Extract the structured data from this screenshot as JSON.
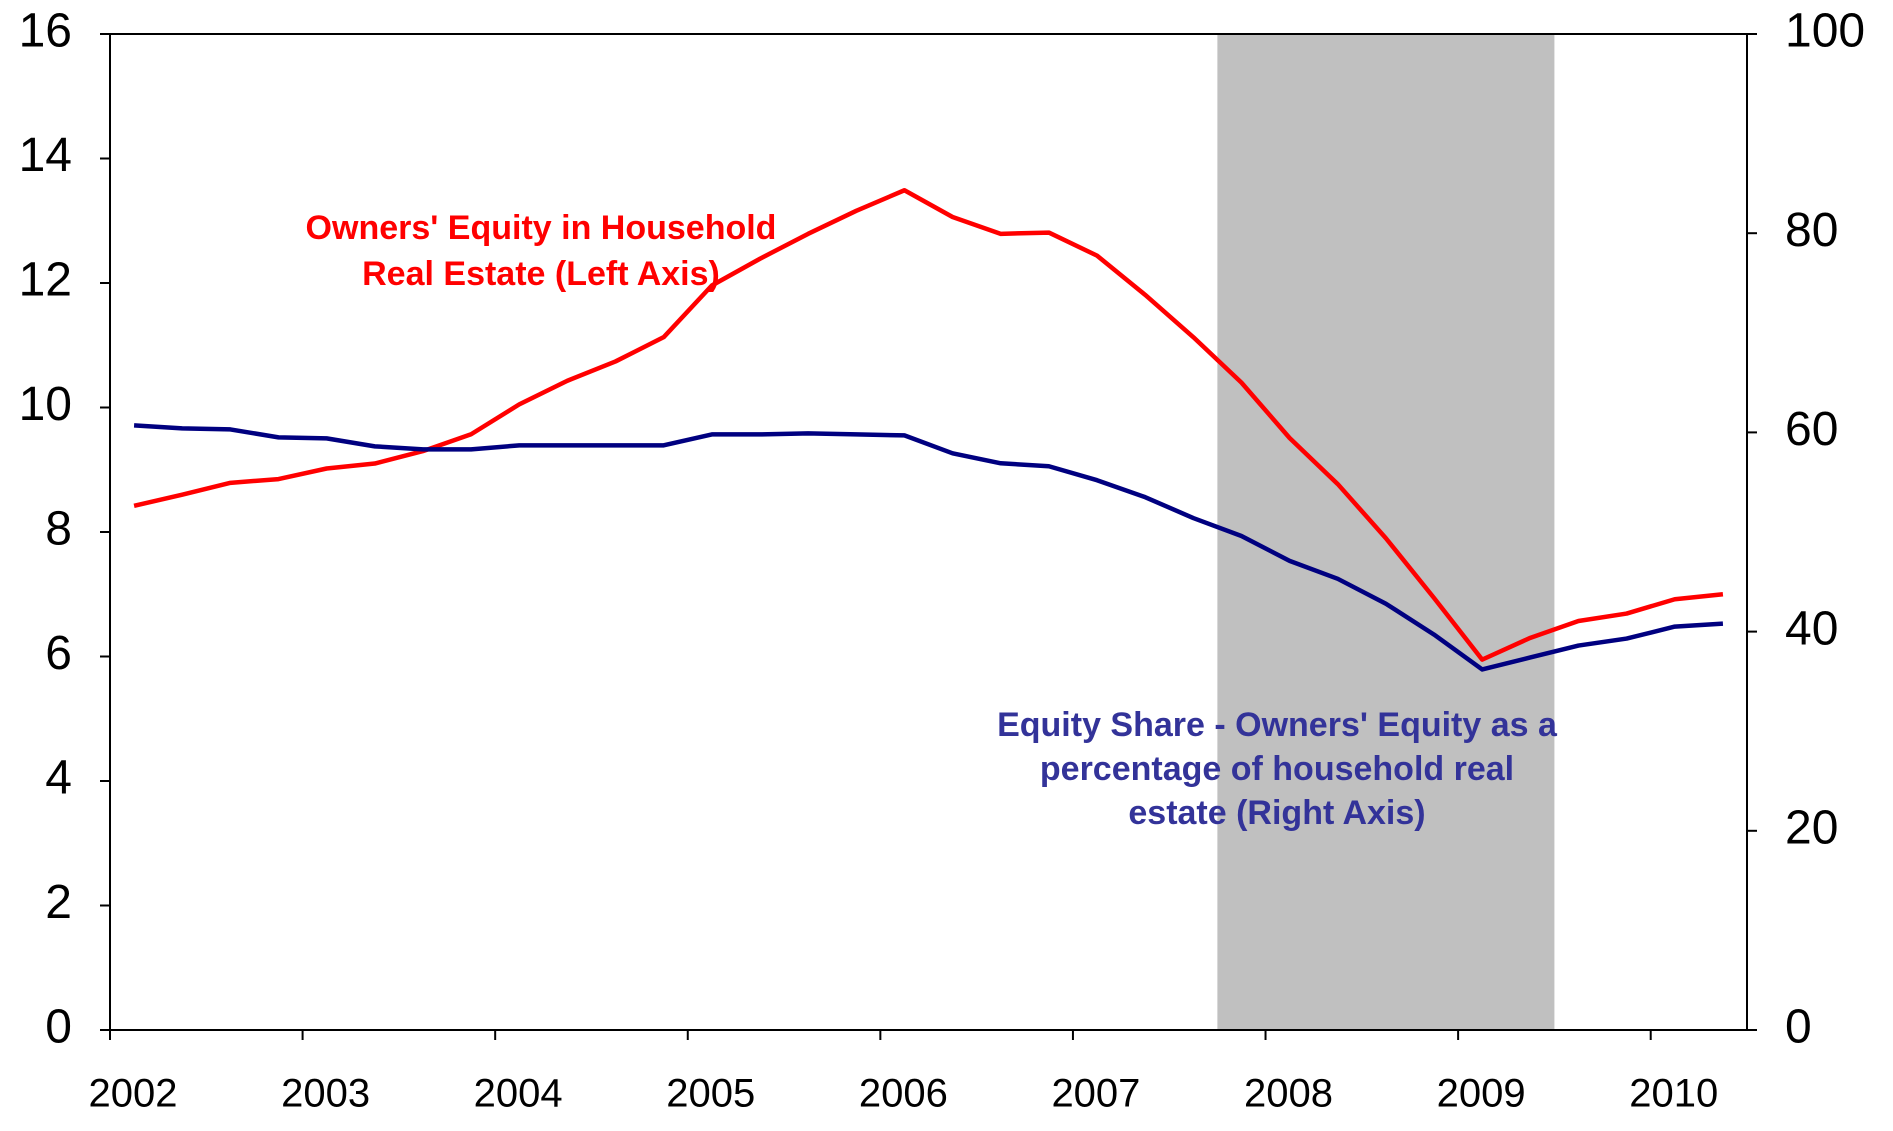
{
  "chart_data": {
    "type": "line",
    "x": [
      2002.125,
      2002.375,
      2002.625,
      2002.875,
      2003.125,
      2003.375,
      2003.625,
      2003.875,
      2004.125,
      2004.375,
      2004.625,
      2004.875,
      2005.125,
      2005.375,
      2005.625,
      2005.875,
      2006.125,
      2006.375,
      2006.625,
      2006.875,
      2007.125,
      2007.375,
      2007.625,
      2007.875,
      2008.125,
      2008.375,
      2008.625,
      2008.875,
      2009.125,
      2009.375,
      2009.625,
      2009.875,
      2010.125,
      2010.375
    ],
    "series": [
      {
        "name": "Owners' Equity in Household Real Estate (Left Axis)",
        "color": "#ff0000",
        "axis": "y",
        "values": [
          8.42,
          8.6,
          8.79,
          8.85,
          9.02,
          9.1,
          9.3,
          9.57,
          10.05,
          10.43,
          10.74,
          11.13,
          11.96,
          12.39,
          12.79,
          13.16,
          13.49,
          13.06,
          12.79,
          12.81,
          12.44,
          11.81,
          11.13,
          10.4,
          9.51,
          8.77,
          7.9,
          6.94,
          5.95,
          6.3,
          6.57,
          6.69,
          6.92,
          7.0
        ]
      },
      {
        "name": "Equity Share - Owners' Equity as a percentage of household real estate (Right Axis)",
        "color": "#000080",
        "axis": "y2",
        "values": [
          60.7,
          60.4,
          60.3,
          59.5,
          59.4,
          58.6,
          58.3,
          58.3,
          58.7,
          58.7,
          58.7,
          58.7,
          59.8,
          59.8,
          59.9,
          59.8,
          59.7,
          57.9,
          56.9,
          56.6,
          55.2,
          53.5,
          51.4,
          49.6,
          47.1,
          45.3,
          42.8,
          39.7,
          36.2,
          37.4,
          38.6,
          39.3,
          40.5,
          40.8
        ]
      }
    ],
    "annotations": [
      {
        "lines": [
          "Owners' Equity in Household",
          "Real Estate (Left Axis)"
        ],
        "color": "#ff0000"
      },
      {
        "lines": [
          "Equity Share - Owners' Equity as a",
          "percentage of household real",
          "estate (Right Axis)"
        ],
        "color": "#333399"
      }
    ],
    "shaded_regions": [
      {
        "start": 2007.75,
        "end": 2009.5,
        "color": "#c0c0c0"
      }
    ],
    "xlim": [
      2002,
      2010.5
    ],
    "xticks": [
      2002,
      2003,
      2004,
      2005,
      2006,
      2007,
      2008,
      2009,
      2010
    ],
    "ylim": [
      0,
      16
    ],
    "yticks": [
      0,
      2,
      4,
      6,
      8,
      10,
      12,
      14,
      16
    ],
    "y2lim": [
      0,
      100
    ],
    "y2ticks": [
      0,
      20,
      40,
      60,
      80,
      100
    ],
    "grid": false
  }
}
